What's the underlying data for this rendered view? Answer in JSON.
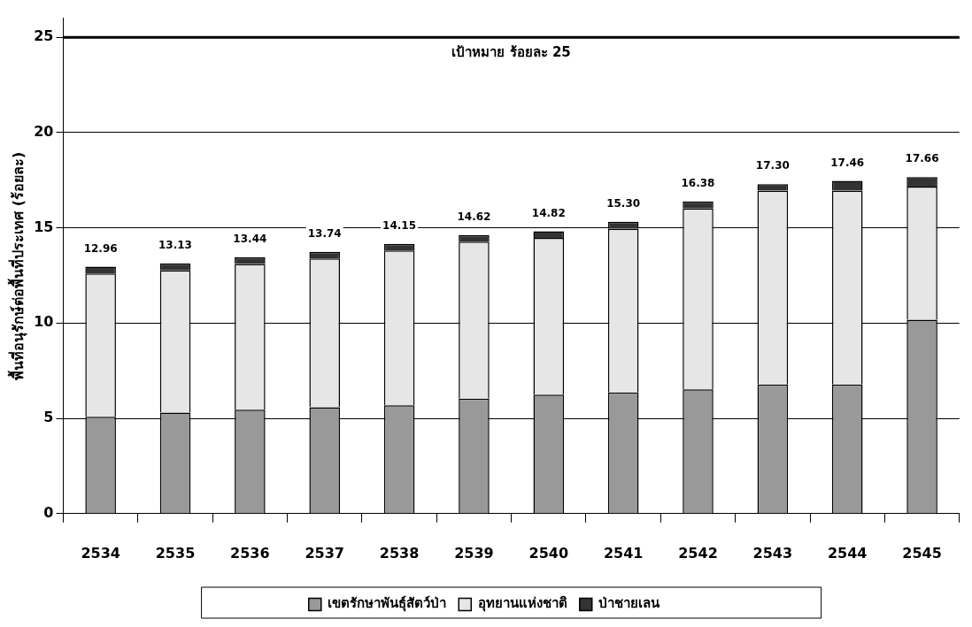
{
  "chart_data": {
    "type": "bar",
    "stacked": true,
    "ylabel": "พื้นที่อนุรักษ์ต่อพื้นที่ประเทศ (ร้อยละ)",
    "categories": [
      "2534",
      "2535",
      "2536",
      "2537",
      "2538",
      "2539",
      "2540",
      "2541",
      "2542",
      "2543",
      "2544",
      "2545"
    ],
    "series": [
      {
        "name": "เขตรักษาพันธุ์สัตว์ป่า",
        "color": "#999999",
        "values": [
          5.08,
          5.3,
          5.45,
          5.58,
          5.69,
          6.04,
          6.24,
          6.36,
          6.52,
          6.78,
          6.78,
          10.18
        ]
      },
      {
        "name": "อุทยานแห่งชาติ",
        "color": "#e6e6e6",
        "values": [
          7.52,
          7.47,
          7.65,
          7.81,
          8.12,
          8.23,
          8.23,
          8.59,
          9.49,
          10.17,
          10.17,
          6.98
        ]
      },
      {
        "name": "ป่าชายเลน",
        "color": "#333333",
        "values": [
          0.36,
          0.36,
          0.35,
          0.35,
          0.35,
          0.35,
          0.35,
          0.37,
          0.37,
          0.34,
          0.51,
          0.5
        ]
      }
    ],
    "totals": [
      "12.96",
      "13.13",
      "13.44",
      "13.74",
      "14.15",
      "14.62",
      "14.82",
      "15.30",
      "16.38",
      "17.30",
      "17.46",
      "17.66"
    ],
    "ylim": [
      0,
      26
    ],
    "yticks": [
      0,
      5,
      10,
      15,
      20,
      25
    ],
    "grid": "y",
    "legend": "bottom",
    "ref_lines": [
      {
        "axis": "y",
        "value": 25,
        "label": "เป้าหมาย ร้อยละ 25",
        "color": "#000000"
      }
    ]
  }
}
